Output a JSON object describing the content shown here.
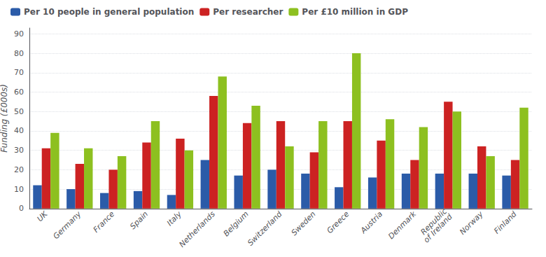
{
  "chart_data": {
    "type": "bar",
    "ylabel": "Funding (£000s)",
    "categories": [
      "UK",
      "Germany",
      "France",
      "Spain",
      "Italy",
      "Netherlands",
      "Belgium",
      "Switzerland",
      "Sweden",
      "Greece",
      "Austria",
      "Denmark",
      "Republic\nof Ireland",
      "Norway",
      "Finland"
    ],
    "series": [
      {
        "name": "Per 10 people in general population",
        "color": "#2B5BA8",
        "values": [
          12,
          10,
          8,
          9,
          7,
          25,
          17,
          20,
          18,
          11,
          16,
          18,
          18,
          18,
          17
        ]
      },
      {
        "name": "Per researcher",
        "color": "#CC2222",
        "values": [
          31,
          23,
          20,
          34,
          36,
          58,
          44,
          45,
          29,
          45,
          35,
          25,
          55,
          32,
          25
        ]
      },
      {
        "name": "Per £10 million in GDP",
        "color": "#8DC020",
        "values": [
          39,
          31,
          27,
          45,
          30,
          68,
          53,
          32,
          45,
          80,
          46,
          42,
          50,
          27,
          52
        ]
      }
    ],
    "ylim": [
      0,
      93
    ],
    "yticks": [
      0,
      10,
      20,
      30,
      40,
      50,
      60,
      70,
      80,
      90
    ],
    "grid": true,
    "legend": "upper left"
  }
}
